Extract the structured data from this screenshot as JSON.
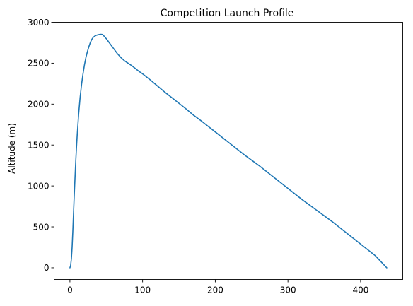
{
  "chart_data": {
    "type": "line",
    "title": "Competition Launch Profile",
    "xlabel": "",
    "ylabel": "Altitude (m)",
    "xlim": [
      -21.8,
      458.0
    ],
    "ylim": [
      -143,
      3000
    ],
    "xticks": [
      0,
      100,
      200,
      300,
      400
    ],
    "yticks": [
      0,
      500,
      1000,
      1500,
      2000,
      2500,
      3000
    ],
    "grid": false,
    "legend": "none",
    "series": [
      {
        "color": "#1f77b4",
        "x": [
          0,
          1,
          2,
          3,
          4,
          5,
          6,
          7,
          8,
          9,
          10,
          12,
          14,
          16,
          18,
          20,
          22,
          24,
          26,
          28,
          30,
          32,
          34,
          36,
          38,
          40,
          42,
          44,
          45,
          46,
          48,
          50,
          55,
          60,
          65,
          70,
          75,
          80,
          85,
          90,
          95,
          100,
          110,
          120,
          130,
          140,
          150,
          160,
          170,
          180,
          190,
          200,
          220,
          240,
          260,
          280,
          300,
          320,
          340,
          360,
          380,
          400,
          420,
          436
        ],
        "y": [
          0,
          30,
          110,
          250,
          450,
          680,
          900,
          1100,
          1300,
          1470,
          1620,
          1880,
          2080,
          2240,
          2370,
          2480,
          2570,
          2640,
          2700,
          2750,
          2790,
          2815,
          2830,
          2840,
          2845,
          2850,
          2853,
          2852,
          2850,
          2840,
          2820,
          2800,
          2740,
          2680,
          2620,
          2570,
          2530,
          2500,
          2470,
          2435,
          2400,
          2370,
          2300,
          2225,
          2150,
          2080,
          2010,
          1940,
          1865,
          1800,
          1730,
          1660,
          1520,
          1380,
          1250,
          1110,
          970,
          830,
          700,
          570,
          430,
          290,
          150,
          0
        ]
      }
    ]
  }
}
